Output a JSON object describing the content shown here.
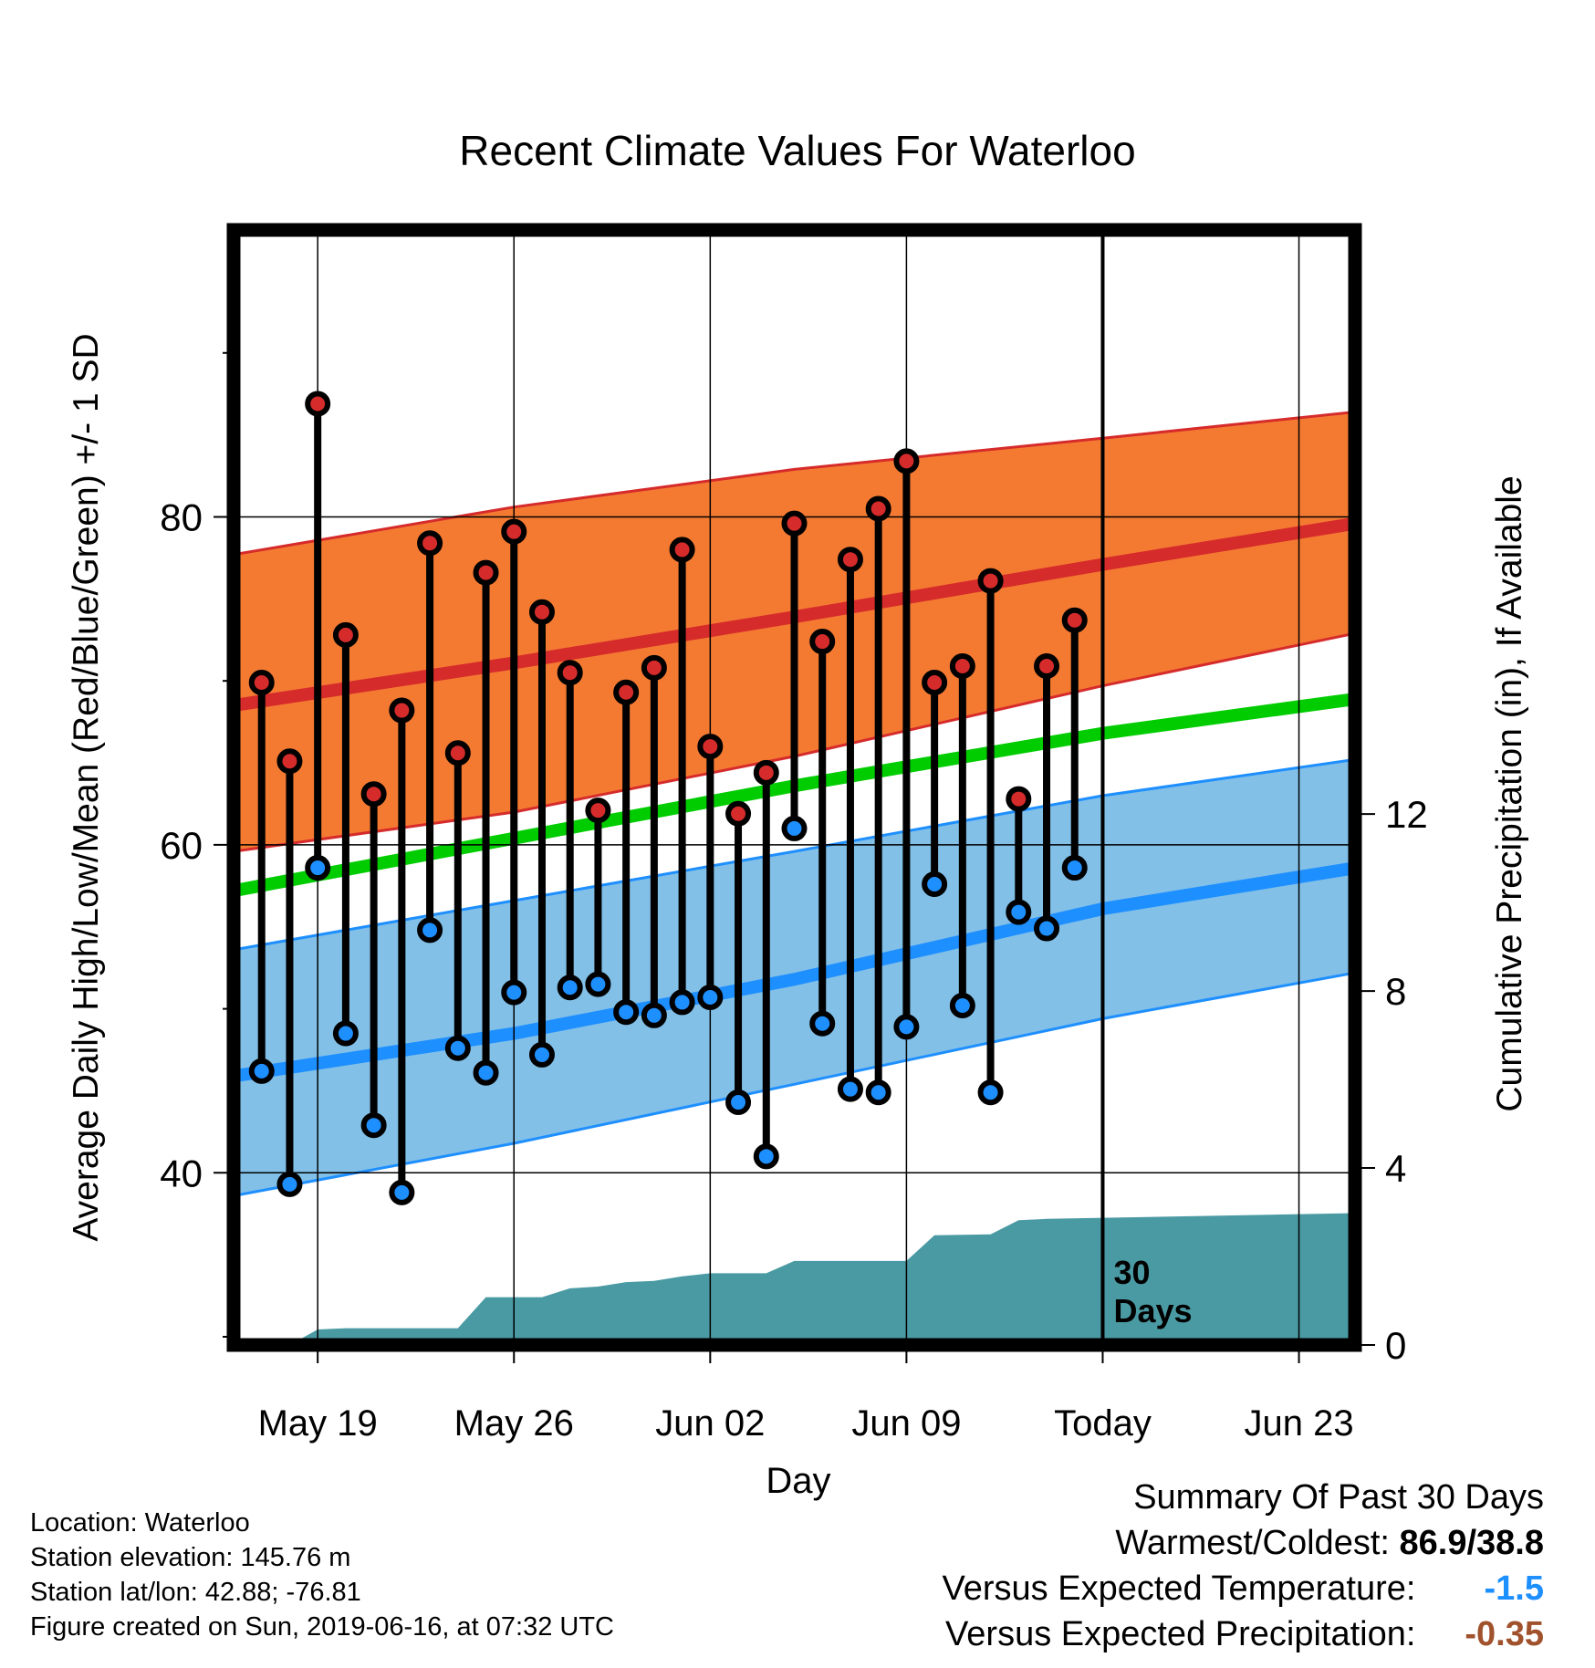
{
  "title": "Recent Climate Values For Waterloo",
  "info": {
    "location": "Location: Waterloo",
    "elevation": "Station elevation: 145.76 m",
    "latlon": "Station lat/lon: 42.88; -76.81",
    "created": "Figure created on Sun, 2019-06-16, at 07:32 UTC"
  },
  "summary": {
    "heading": "Summary Of Past 30 Days",
    "warm_cold_label": "Warmest/Coldest:",
    "warm_cold_value": "86.9/38.8",
    "temp_label": "Versus Expected Temperature:",
    "temp_value": "-1.5",
    "precip_label": "Versus Expected Precipitation:",
    "precip_value": "-0.35"
  },
  "chart_data": {
    "type": "line",
    "xlabel": "Day",
    "ylabel": "Average Daily High/Low/Mean (Red/Blue/Green) +/- 1 SD",
    "y2label": "Cumulative Precipitation (in), If Available",
    "xlim": [
      "2019-05-16",
      "2019-06-25"
    ],
    "ylim": [
      29.5,
      97.5
    ],
    "y2lim": [
      0,
      25.2
    ],
    "yticks": [
      40,
      60,
      80
    ],
    "yminor": [
      30,
      50,
      70,
      90
    ],
    "y2ticks": [
      0,
      4,
      8,
      12
    ],
    "x_tick_dates": [
      "2019-05-19",
      "2019-05-26",
      "2019-06-02",
      "2019-06-09",
      "2019-06-16",
      "2019-06-23"
    ],
    "x_tick_labels": [
      "May 19",
      "May 26",
      "Jun 02",
      "Jun 09",
      "Today",
      "Jun 23"
    ],
    "today_date": "2019-06-16",
    "today_annotation": [
      "30",
      "Days"
    ],
    "grid": true,
    "colors": {
      "high_band": "#f47a32",
      "high_line": "#d62b2b",
      "low_band": "#82c0e8",
      "low_line": "#1e8fff",
      "mean_line": "#00cc00",
      "precip": "#4a9aa3",
      "high_dot": "#d62b2b",
      "low_dot": "#1e8fff",
      "temp_summary": "#1e8fff",
      "precip_summary": "#a0522d"
    },
    "normals": {
      "dates": [
        "2019-05-16",
        "2019-05-26",
        "2019-06-05",
        "2019-06-16",
        "2019-06-25"
      ],
      "high_mean": [
        68.5,
        71.1,
        73.9,
        77.1,
        79.6
      ],
      "high_upper": [
        77.7,
        80.6,
        82.9,
        84.8,
        86.4
      ],
      "high_lower": [
        59.6,
        62.0,
        65.4,
        69.7,
        72.9
      ],
      "mean": [
        57.2,
        60.4,
        63.6,
        66.8,
        68.9
      ],
      "low_mean": [
        45.9,
        48.5,
        51.8,
        56.1,
        58.6
      ],
      "low_upper": [
        53.6,
        56.6,
        59.6,
        63.0,
        65.2
      ],
      "low_lower": [
        38.6,
        41.8,
        45.4,
        49.4,
        52.2
      ]
    },
    "series": [
      {
        "name": "High",
        "dates": [
          "2019-05-17",
          "2019-05-18",
          "2019-05-19",
          "2019-05-20",
          "2019-05-21",
          "2019-05-22",
          "2019-05-23",
          "2019-05-24",
          "2019-05-25",
          "2019-05-26",
          "2019-05-27",
          "2019-05-28",
          "2019-05-29",
          "2019-05-30",
          "2019-05-31",
          "2019-06-01",
          "2019-06-02",
          "2019-06-03",
          "2019-06-04",
          "2019-06-05",
          "2019-06-06",
          "2019-06-07",
          "2019-06-08",
          "2019-06-09",
          "2019-06-10",
          "2019-06-11",
          "2019-06-12",
          "2019-06-13",
          "2019-06-14",
          "2019-06-15"
        ],
        "values": [
          69.9,
          65.1,
          86.9,
          72.8,
          63.1,
          68.2,
          78.4,
          65.6,
          76.6,
          79.1,
          74.2,
          70.5,
          62.1,
          69.3,
          70.8,
          78.0,
          66.0,
          61.9,
          64.4,
          79.6,
          72.4,
          77.4,
          80.5,
          83.4,
          69.9,
          70.9,
          76.1,
          62.8,
          70.9,
          73.7
        ]
      },
      {
        "name": "Low",
        "dates": [
          "2019-05-17",
          "2019-05-18",
          "2019-05-19",
          "2019-05-20",
          "2019-05-21",
          "2019-05-22",
          "2019-05-23",
          "2019-05-24",
          "2019-05-25",
          "2019-05-26",
          "2019-05-27",
          "2019-05-28",
          "2019-05-29",
          "2019-05-30",
          "2019-05-31",
          "2019-06-01",
          "2019-06-02",
          "2019-06-03",
          "2019-06-04",
          "2019-06-05",
          "2019-06-06",
          "2019-06-07",
          "2019-06-08",
          "2019-06-09",
          "2019-06-10",
          "2019-06-11",
          "2019-06-12",
          "2019-06-13",
          "2019-06-14",
          "2019-06-15"
        ],
        "values": [
          46.2,
          39.3,
          58.6,
          48.5,
          42.9,
          38.8,
          54.8,
          47.6,
          46.1,
          51.0,
          47.2,
          51.3,
          51.5,
          49.8,
          49.6,
          50.4,
          50.7,
          44.3,
          41.0,
          61.0,
          49.1,
          45.1,
          44.9,
          48.9,
          57.6,
          50.2,
          44.9,
          55.9,
          54.9,
          58.6
        ]
      },
      {
        "name": "Cumulative Precipitation",
        "dates": [
          "2019-05-18",
          "2019-05-19",
          "2019-05-20",
          "2019-05-24",
          "2019-05-25",
          "2019-05-27",
          "2019-05-28",
          "2019-05-29",
          "2019-05-30",
          "2019-05-31",
          "2019-06-01",
          "2019-06-02",
          "2019-06-04",
          "2019-06-05",
          "2019-06-09",
          "2019-06-10",
          "2019-06-12",
          "2019-06-13",
          "2019-06-14",
          "2019-06-25"
        ],
        "values": [
          0.0,
          0.35,
          0.38,
          0.38,
          1.08,
          1.08,
          1.28,
          1.32,
          1.42,
          1.45,
          1.55,
          1.62,
          1.62,
          1.9,
          1.9,
          2.48,
          2.5,
          2.82,
          2.85,
          2.98
        ]
      }
    ]
  }
}
